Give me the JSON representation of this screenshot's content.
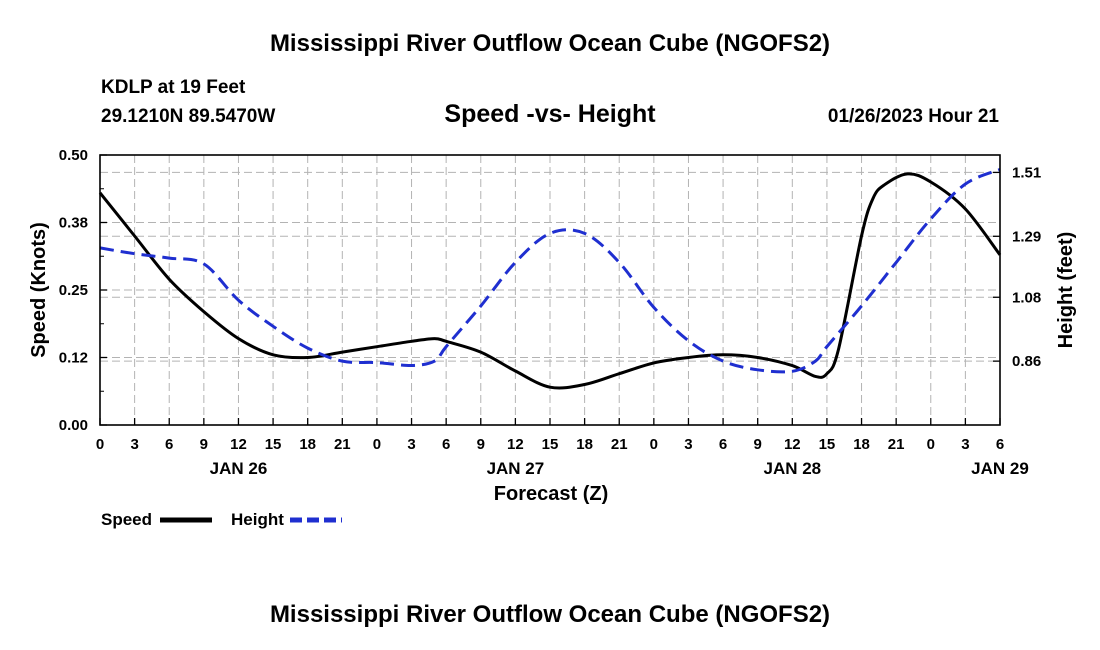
{
  "page": {
    "title_top": "Mississippi River Outflow Ocean Cube (NGOFS2)",
    "title_bottom": "Mississippi River Outflow Ocean Cube (NGOFS2)",
    "station_line": "KDLP at 19 Feet",
    "coords_line": "29.1210N  89.5470W",
    "date_line": "01/26/2023 Hour 21"
  },
  "legend": {
    "speed_label": "Speed",
    "height_label": "Height"
  },
  "colors": {
    "speed": "#000000",
    "height": "#1f2fd0",
    "grid": "#b3b3b3"
  },
  "chart_data": {
    "type": "line",
    "title": "Speed -vs- Height",
    "xlabel": "Forecast (Z)",
    "ylabel_left": "Speed (Knots)",
    "ylabel_right": "Height (feet)",
    "x_unit": "hours since JAN 26 00Z",
    "xlim": [
      0,
      78
    ],
    "x_ticks": [
      0,
      3,
      6,
      9,
      12,
      15,
      18,
      21,
      24,
      27,
      30,
      33,
      36,
      39,
      42,
      45,
      48,
      51,
      54,
      57,
      60,
      63,
      66,
      69,
      72,
      75,
      78
    ],
    "x_tick_labels": [
      "0",
      "3",
      "6",
      "9",
      "12",
      "15",
      "18",
      "21",
      "0",
      "3",
      "6",
      "9",
      "12",
      "15",
      "18",
      "21",
      "0",
      "3",
      "6",
      "9",
      "12",
      "15",
      "18",
      "21",
      "0",
      "3",
      "6"
    ],
    "date_labels": [
      {
        "label": "JAN 26",
        "x": 12
      },
      {
        "label": "JAN 27",
        "x": 36
      },
      {
        "label": "JAN 28",
        "x": 60
      },
      {
        "label": "JAN 29",
        "x": 78
      }
    ],
    "y_left": {
      "lim": [
        0,
        0.5
      ],
      "ticks": [
        0,
        0.125,
        0.25,
        0.375,
        0.5
      ],
      "tick_labels": [
        "0.00",
        "0.12",
        "0.25",
        "0.38",
        "0.50"
      ]
    },
    "y_right": {
      "lim": [
        0.64,
        1.57
      ],
      "ticks": [
        0.86,
        1.08,
        1.29,
        1.51
      ],
      "tick_labels": [
        "0.86",
        "1.08",
        "1.29",
        "1.51"
      ]
    },
    "series": [
      {
        "name": "Speed",
        "axis": "left",
        "style": "solid",
        "x": [
          0,
          3,
          6,
          9,
          12,
          15,
          18,
          21,
          24,
          27,
          29,
          30,
          33,
          36,
          39,
          42,
          45,
          48,
          51,
          54,
          57,
          60,
          62,
          63,
          64,
          66,
          67,
          68,
          70,
          72,
          75,
          78
        ],
        "values": [
          0.43,
          0.35,
          0.27,
          0.21,
          0.16,
          0.13,
          0.125,
          0.135,
          0.145,
          0.155,
          0.16,
          0.155,
          0.135,
          0.1,
          0.07,
          0.075,
          0.095,
          0.115,
          0.125,
          0.13,
          0.125,
          0.11,
          0.09,
          0.095,
          0.14,
          0.35,
          0.42,
          0.445,
          0.465,
          0.45,
          0.4,
          0.315
        ]
      },
      {
        "name": "Height",
        "axis": "right",
        "style": "dashed",
        "x": [
          0,
          3,
          6,
          9,
          12,
          15,
          18,
          21,
          24,
          27,
          29,
          30,
          33,
          36,
          39,
          42,
          45,
          48,
          51,
          54,
          57,
          60,
          62,
          63,
          66,
          69,
          72,
          75,
          78
        ],
        "values": [
          1.25,
          1.23,
          1.215,
          1.195,
          1.07,
          0.98,
          0.905,
          0.86,
          0.855,
          0.845,
          0.86,
          0.91,
          1.05,
          1.2,
          1.3,
          1.3,
          1.2,
          1.045,
          0.93,
          0.86,
          0.83,
          0.825,
          0.86,
          0.91,
          1.05,
          1.2,
          1.35,
          1.47,
          1.52
        ]
      }
    ]
  }
}
